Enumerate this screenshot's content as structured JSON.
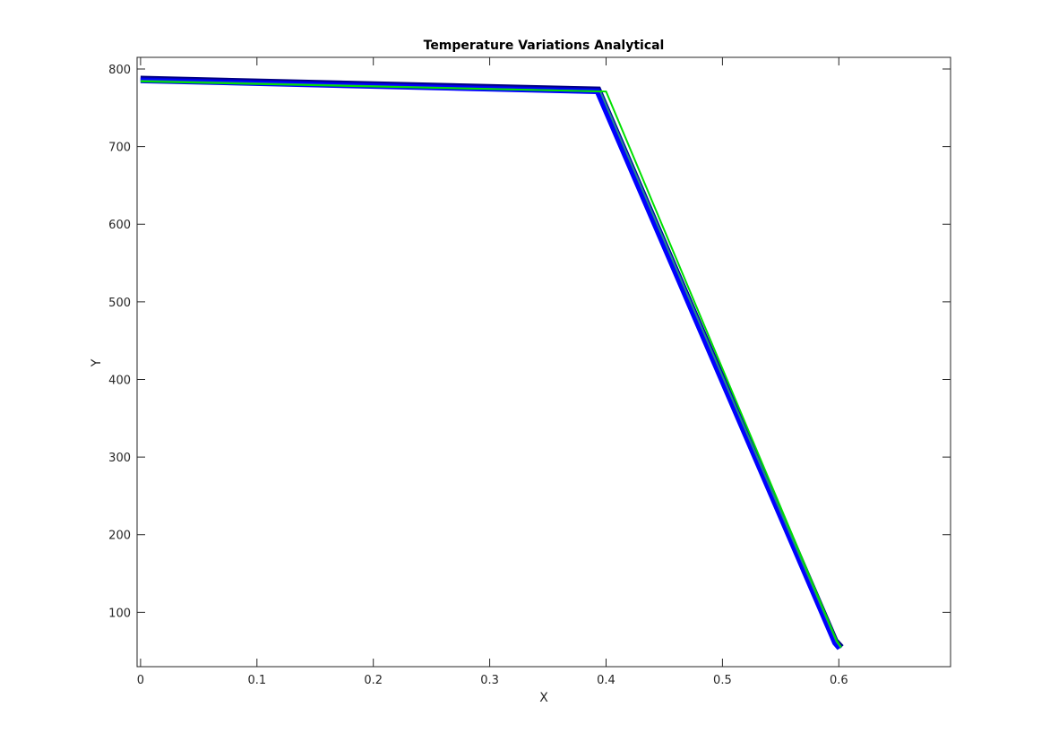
{
  "chart_data": {
    "type": "line",
    "title": "Temperature Variations Analytical",
    "xlabel": "X",
    "ylabel": "Y",
    "xlim": [
      -0.003,
      0.696
    ],
    "ylim": [
      30,
      815
    ],
    "xticks": [
      0,
      0.1,
      0.2,
      0.3,
      0.4,
      0.5,
      0.6
    ],
    "xtick_labels": [
      "0",
      "0.1",
      "0.2",
      "0.3",
      "0.4",
      "0.5",
      "0.6"
    ],
    "yticks": [
      100,
      200,
      300,
      400,
      500,
      600,
      700,
      800
    ],
    "ytick_labels": [
      "100",
      "200",
      "300",
      "400",
      "500",
      "600",
      "700",
      "800"
    ],
    "grid": false,
    "series": [
      {
        "color": "#000080",
        "x": [
          0,
          0.394,
          0.598,
          0.603
        ],
        "y": [
          789,
          775,
          64,
          56
        ]
      },
      {
        "color": "#0000c8",
        "x": [
          0,
          0.394,
          0.598,
          0.602
        ],
        "y": [
          787,
          773,
          62,
          55
        ]
      },
      {
        "color": "#0000ff",
        "x": [
          0,
          0.393,
          0.597,
          0.601
        ],
        "y": [
          786,
          772,
          61,
          54
        ]
      },
      {
        "color": "#0000ff",
        "x": [
          0,
          0.392,
          0.596,
          0.6
        ],
        "y": [
          784,
          770,
          60,
          53
        ]
      },
      {
        "color": "#228b8b",
        "x": [
          0,
          0.395,
          0.598,
          0.602
        ],
        "y": [
          785,
          771,
          62,
          54
        ]
      },
      {
        "color": "#00e000",
        "x": [
          0,
          0.4,
          0.598,
          0.602
        ],
        "y": [
          784,
          771,
          64,
          55
        ]
      }
    ]
  }
}
